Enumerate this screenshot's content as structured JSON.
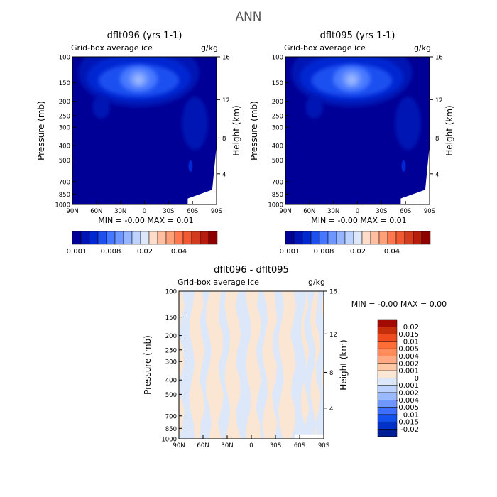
{
  "figure": {
    "title": "ANN"
  },
  "colors": {
    "top_scale": [
      "#000096",
      "#0014b4",
      "#0028d2",
      "#1e50f0",
      "#4678ff",
      "#6e96ff",
      "#96b4ff",
      "#bed2ff",
      "#dce8fa",
      "#ffdcc8",
      "#ffbea0",
      "#ffa078",
      "#ff7850",
      "#f05a32",
      "#d23c1e",
      "#b41e0a",
      "#8c0000"
    ],
    "diff_scale": [
      "#001e96",
      "#0032c8",
      "#1450f0",
      "#3c6eff",
      "#6e96ff",
      "#9bb9ff",
      "#bed2ff",
      "#dce8fa",
      "#fae6d2",
      "#ffc8a5",
      "#ffaa82",
      "#ff8c5a",
      "#ff6e37",
      "#f04b1e",
      "#c82d0a",
      "#a00a00"
    ]
  },
  "chart_data": [
    {
      "type": "heatmap",
      "panel_title": "dflt096 (yrs 1-1)",
      "field": "Grid-box average ice",
      "units": "g/kg",
      "ylabel": "Pressure (mb)",
      "ylabel_right": "Height (km)",
      "x_ticks": [
        "90N",
        "60N",
        "30N",
        "0",
        "30S",
        "60S",
        "90S"
      ],
      "y_ticks": [
        "100",
        "150",
        "200",
        "250",
        "300",
        "400",
        "500",
        "700",
        "850",
        "1000"
      ],
      "height_ticks": [
        "16",
        "12",
        "8",
        "4"
      ],
      "stats": "MIN =  -0.00   MAX =   0.01",
      "colorbar_labels": [
        "0.001",
        "0.008",
        "0.02",
        "0.04"
      ],
      "max_value": 0.01
    },
    {
      "type": "heatmap",
      "panel_title": "dflt095 (yrs 1-1)",
      "field": "Grid-box average ice",
      "units": "g/kg",
      "ylabel": "Pressure (mb)",
      "ylabel_right": "Height (km)",
      "x_ticks": [
        "90N",
        "60N",
        "30N",
        "0",
        "30S",
        "60S",
        "90S"
      ],
      "y_ticks": [
        "100",
        "150",
        "200",
        "250",
        "300",
        "400",
        "500",
        "700",
        "850",
        "1000"
      ],
      "height_ticks": [
        "16",
        "12",
        "8",
        "4"
      ],
      "stats": "MIN =  -0.00   MAX =   0.01",
      "colorbar_labels": [
        "0.001",
        "0.008",
        "0.02",
        "0.04"
      ],
      "max_value": 0.01
    },
    {
      "type": "heatmap",
      "panel_title": "dflt096 - dflt095",
      "field": "Grid-box average ice",
      "units": "g/kg",
      "ylabel": "Pressure (mb)",
      "ylabel_right": "Height (km)",
      "x_ticks": [
        "90N",
        "60N",
        "30N",
        "0",
        "30S",
        "60S",
        "90S"
      ],
      "y_ticks": [
        "100",
        "150",
        "200",
        "250",
        "300",
        "400",
        "500",
        "700",
        "850",
        "1000"
      ],
      "height_ticks": [
        "16",
        "12",
        "8",
        "4"
      ],
      "stats": "MIN =  -0.00   MAX =   0.00",
      "colorbar_labels": [
        "0.02",
        "0.015",
        "0.01",
        "0.005",
        "0.004",
        "0.002",
        "0.001",
        "0",
        "-0.001",
        "-0.002",
        "-0.004",
        "-0.005",
        "-0.01",
        "-0.015",
        "-0.02"
      ]
    }
  ]
}
